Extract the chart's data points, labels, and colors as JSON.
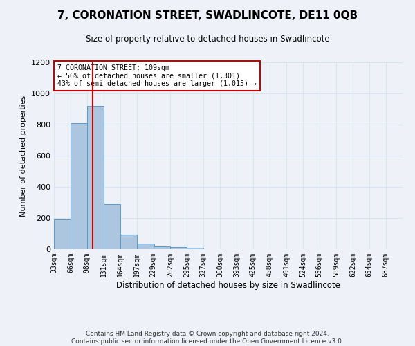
{
  "title": "7, CORONATION STREET, SWADLINCOTE, DE11 0QB",
  "subtitle": "Size of property relative to detached houses in Swadlincote",
  "xlabel": "Distribution of detached houses by size in Swadlincote",
  "ylabel": "Number of detached properties",
  "footnote1": "Contains HM Land Registry data © Crown copyright and database right 2024.",
  "footnote2": "Contains public sector information licensed under the Open Government Licence v3.0.",
  "bin_labels": [
    "33sqm",
    "66sqm",
    "98sqm",
    "131sqm",
    "164sqm",
    "197sqm",
    "229sqm",
    "262sqm",
    "295sqm",
    "327sqm",
    "360sqm",
    "393sqm",
    "425sqm",
    "458sqm",
    "491sqm",
    "524sqm",
    "556sqm",
    "589sqm",
    "622sqm",
    "654sqm",
    "687sqm"
  ],
  "bin_edges": [
    33,
    66,
    98,
    131,
    164,
    197,
    229,
    262,
    295,
    327,
    360,
    393,
    425,
    458,
    491,
    524,
    556,
    589,
    622,
    654,
    687,
    720
  ],
  "bar_values": [
    190,
    810,
    920,
    290,
    95,
    35,
    20,
    15,
    10,
    0,
    0,
    0,
    0,
    0,
    0,
    0,
    0,
    0,
    0,
    0,
    0
  ],
  "bar_color": "#adc6e0",
  "bar_edge_color": "#5a9bc8",
  "grid_color": "#d8e4f0",
  "background_color": "#eef2f8",
  "red_line_x": 109,
  "red_line_color": "#cc0000",
  "annotation_text": "7 CORONATION STREET: 109sqm\n← 56% of detached houses are smaller (1,301)\n43% of semi-detached houses are larger (1,015) →",
  "annotation_box_color": "#ffffff",
  "annotation_box_edge_color": "#cc0000",
  "ylim": [
    0,
    1200
  ],
  "yticks": [
    0,
    200,
    400,
    600,
    800,
    1000,
    1200
  ]
}
